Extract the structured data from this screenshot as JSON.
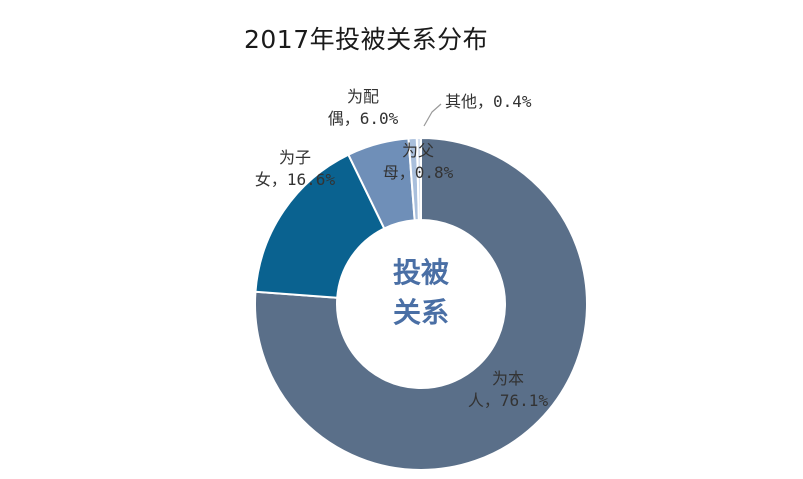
{
  "chart_data": {
    "type": "pie",
    "title": "2017年投被关系分布",
    "center_label_lines": [
      "投被",
      "关系"
    ],
    "slices": [
      {
        "label_lines": [
          "为本",
          "人，76.1%"
        ],
        "value": 76.1,
        "color": "#5a6f89"
      },
      {
        "label_lines": [
          "为子",
          "女，16.6%"
        ],
        "value": 16.6,
        "color": "#0a6290"
      },
      {
        "label_lines": [
          "为配",
          "偶，6.0%"
        ],
        "value": 6.0,
        "color": "#6f8fb8"
      },
      {
        "label_lines": [
          "为父",
          "母，0.8%"
        ],
        "value": 0.8,
        "color": "#a9bfdc"
      },
      {
        "label_lines": [
          "其他，0.4%"
        ],
        "value": 0.4,
        "color": "#d5dfee"
      }
    ]
  },
  "colors": {
    "center_text": "#4a6fa5",
    "label_text": "#333333",
    "leader_line": "#999999"
  }
}
